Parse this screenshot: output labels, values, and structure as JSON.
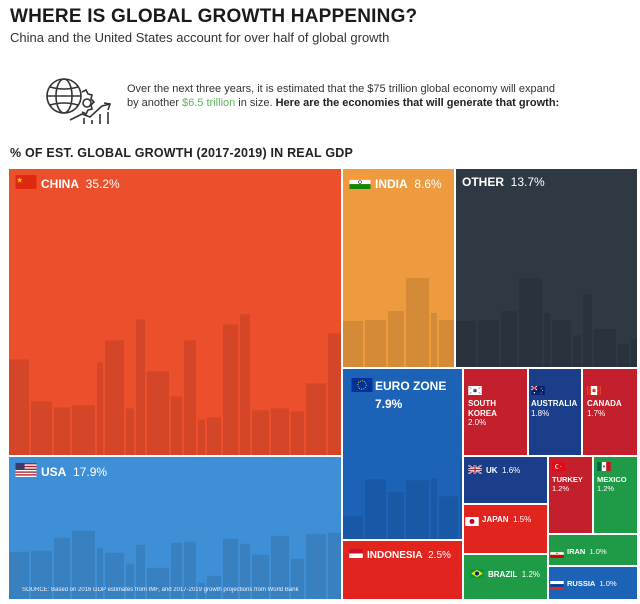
{
  "header": {
    "title": "WHERE IS GLOBAL GROWTH HAPPENING?",
    "subtitle": "China and the United States account for over half of global growth"
  },
  "intro": {
    "line1": "Over the next three years, it is estimated that the $75 trillion global economy will expand",
    "line2_prefix": "by another ",
    "line2_highlight": "$6.5 trillion",
    "line2_mid": " in size. ",
    "line2_bold": "Here are the economies that will generate that growth:",
    "icon": "globe-growth-icon"
  },
  "section_title": "% OF EST. GLOBAL GROWTH (2017-2019) IN REAL GDP",
  "source": "SOURCE: Based on 2016 GDP estimates from IMF, and 2017-2019 growth projections from World Bank",
  "chart_data": {
    "type": "treemap",
    "title": "% OF EST. GLOBAL GROWTH (2017-2019) IN REAL GDP",
    "unit": "%",
    "items": [
      {
        "name": "CHINA",
        "value": 35.2,
        "label": "35.2%",
        "color": "#ec4f2c",
        "flag": "china-flag-icon"
      },
      {
        "name": "USA",
        "value": 17.9,
        "label": "17.9%",
        "color": "#3f8fd6",
        "flag": "usa-flag-icon"
      },
      {
        "name": "INDIA",
        "value": 8.6,
        "label": "8.6%",
        "color": "#ee9a3e",
        "flag": "india-flag-icon"
      },
      {
        "name": "OTHER",
        "value": 13.7,
        "label": "13.7%",
        "color": "#2e3944",
        "flag": ""
      },
      {
        "name": "EURO ZONE",
        "value": 7.9,
        "label": "7.9%",
        "color": "#1c63b7",
        "flag": "eu-flag-icon"
      },
      {
        "name": "INDONESIA",
        "value": 2.5,
        "label": "2.5%",
        "color": "#e2241f",
        "flag": "indonesia-flag-icon"
      },
      {
        "name": "SOUTH KOREA",
        "value": 2.0,
        "label": "2.0%",
        "color": "#c41f2d",
        "flag": "korea-flag-icon"
      },
      {
        "name": "AUSTRALIA",
        "value": 1.8,
        "label": "1.8%",
        "color": "#1b3e8a",
        "flag": "australia-flag-icon"
      },
      {
        "name": "CANADA",
        "value": 1.7,
        "label": "1.7%",
        "color": "#c41f2d",
        "flag": "canada-flag-icon"
      },
      {
        "name": "UK",
        "value": 1.6,
        "label": "1.6%",
        "color": "#1b3e8a",
        "flag": "uk-flag-icon"
      },
      {
        "name": "TURKEY",
        "value": 1.2,
        "label": "1.2%",
        "color": "#c41f2d",
        "flag": "turkey-flag-icon"
      },
      {
        "name": "MEXICO",
        "value": 1.2,
        "label": "1.2%",
        "color": "#1f9a47",
        "flag": "mexico-flag-icon"
      },
      {
        "name": "JAPAN",
        "value": 1.5,
        "label": "1.5%",
        "color": "#e2241f",
        "flag": "japan-flag-icon"
      },
      {
        "name": "IRAN",
        "value": 1.0,
        "label": "1.0%",
        "color": "#1f9a47",
        "flag": "iran-flag-icon"
      },
      {
        "name": "BRAZIL",
        "value": 1.2,
        "label": "1.2%",
        "color": "#1f9a47",
        "flag": "brazil-flag-icon"
      },
      {
        "name": "RUSSIA",
        "value": 1.0,
        "label": "1.0%",
        "color": "#1c63b7",
        "flag": "russia-flag-icon"
      }
    ]
  }
}
